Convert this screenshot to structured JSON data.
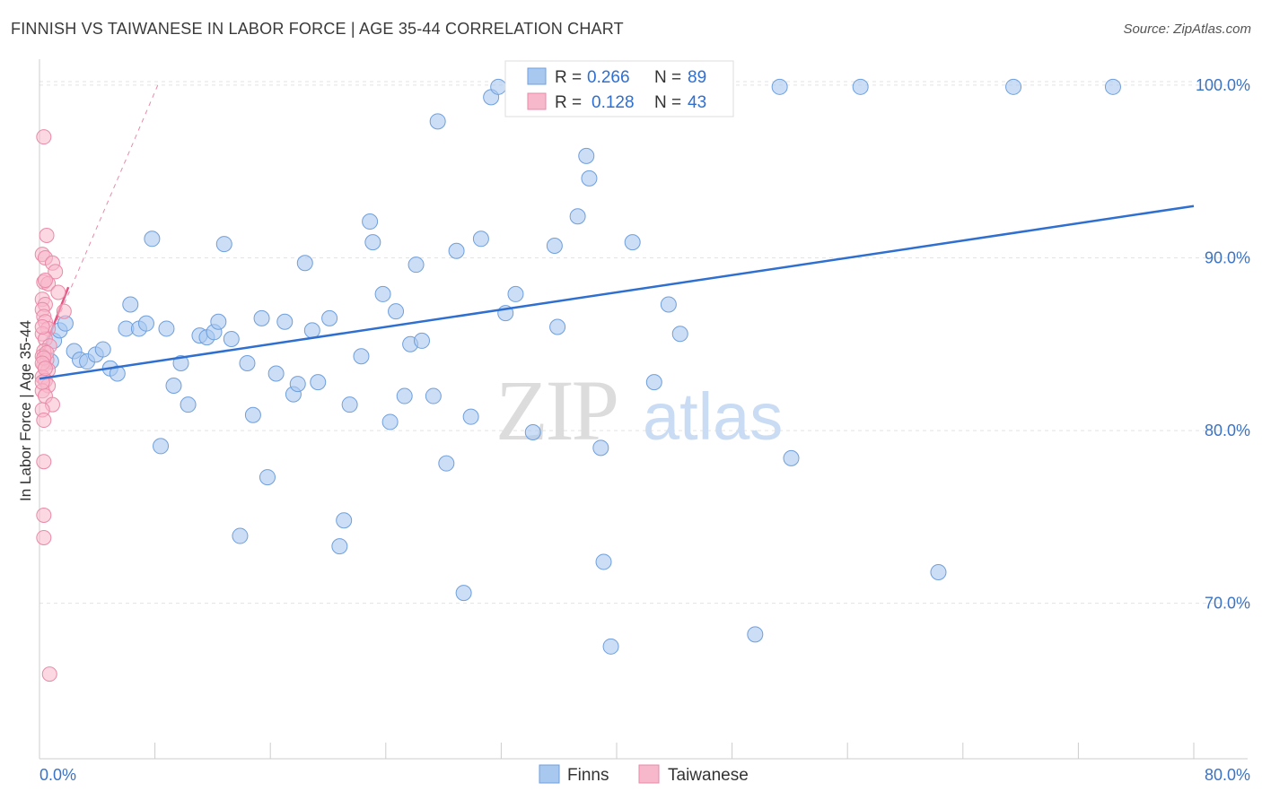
{
  "title": "FINNISH VS TAIWANESE IN LABOR FORCE | AGE 35-44 CORRELATION CHART",
  "source": "Source: ZipAtlas.com",
  "watermark": {
    "zip": "ZIP",
    "atlas": "atlas"
  },
  "colors": {
    "finns_fill": "#a9c8f0",
    "finns_stroke": "#6f9fdc",
    "finns_line": "#2f6fd0",
    "taiwanese_fill": "#f7b8cb",
    "taiwanese_stroke": "#e98aa8",
    "taiwanese_line": "#e35583",
    "grid": "#e3e3e3",
    "axis": "#cccccc",
    "tick_text": "#3b73c4"
  },
  "legend": {
    "rows": [
      {
        "r_label": "R =",
        "r_value": "0.266",
        "n_label": "N =",
        "n_value": "89"
      },
      {
        "r_label": "R =",
        "r_value": "0.128",
        "n_label": "N =",
        "n_value": "43"
      }
    ]
  },
  "bottom_legend": [
    "Finns",
    "Taiwanese"
  ],
  "chart_data": {
    "type": "scatter",
    "title": "FINNISH VS TAIWANESE IN LABOR FORCE | AGE 35-44 CORRELATION CHART",
    "xlabel": "",
    "ylabel": "In Labor Force | Age 35-44",
    "xlim": [
      0,
      80
    ],
    "ylim": [
      61,
      101.5
    ],
    "x_tick_labels": [
      {
        "value": 0,
        "label": "0.0%"
      },
      {
        "value": 80,
        "label": "80.0%"
      }
    ],
    "y_tick_labels": [
      {
        "value": 100,
        "label": "100.0%"
      },
      {
        "value": 90,
        "label": "90.0%"
      },
      {
        "value": 80,
        "label": "80.0%"
      },
      {
        "value": 70,
        "label": "70.0%"
      }
    ],
    "x_minor_ticks": [
      8,
      16,
      24,
      32,
      40,
      48,
      56,
      64,
      72,
      80
    ],
    "series": [
      {
        "name": "Finns",
        "r": 0.266,
        "n": 89,
        "trend": {
          "x": [
            0,
            80
          ],
          "y": [
            83.0,
            93.0
          ]
        },
        "points": [
          [
            0.8,
            84.0
          ],
          [
            1.0,
            85.2
          ],
          [
            1.4,
            85.8
          ],
          [
            1.8,
            86.2
          ],
          [
            2.4,
            84.6
          ],
          [
            2.8,
            84.1
          ],
          [
            3.3,
            84.0
          ],
          [
            3.9,
            84.4
          ],
          [
            4.4,
            84.7
          ],
          [
            4.9,
            83.6
          ],
          [
            5.4,
            83.3
          ],
          [
            6.3,
            87.3
          ],
          [
            6.0,
            85.9
          ],
          [
            6.9,
            85.9
          ],
          [
            7.4,
            86.2
          ],
          [
            7.8,
            91.1
          ],
          [
            8.4,
            79.1
          ],
          [
            8.8,
            85.9
          ],
          [
            9.3,
            82.6
          ],
          [
            9.8,
            83.9
          ],
          [
            10.3,
            81.5
          ],
          [
            11.1,
            85.5
          ],
          [
            11.6,
            85.4
          ],
          [
            12.1,
            85.7
          ],
          [
            12.4,
            86.3
          ],
          [
            12.8,
            90.8
          ],
          [
            13.3,
            85.3
          ],
          [
            13.9,
            73.9
          ],
          [
            14.4,
            83.9
          ],
          [
            14.8,
            80.9
          ],
          [
            15.4,
            86.5
          ],
          [
            15.8,
            77.3
          ],
          [
            16.4,
            83.3
          ],
          [
            17.0,
            86.3
          ],
          [
            17.6,
            82.1
          ],
          [
            17.9,
            82.7
          ],
          [
            18.4,
            89.7
          ],
          [
            18.9,
            85.8
          ],
          [
            19.3,
            82.8
          ],
          [
            20.1,
            86.5
          ],
          [
            20.8,
            73.3
          ],
          [
            21.1,
            74.8
          ],
          [
            21.5,
            81.5
          ],
          [
            22.3,
            84.3
          ],
          [
            22.9,
            92.1
          ],
          [
            23.1,
            90.9
          ],
          [
            23.8,
            87.9
          ],
          [
            24.3,
            80.5
          ],
          [
            24.7,
            86.9
          ],
          [
            25.3,
            82.0
          ],
          [
            25.7,
            85.0
          ],
          [
            26.1,
            89.6
          ],
          [
            26.5,
            85.2
          ],
          [
            27.3,
            82.0
          ],
          [
            27.6,
            97.9
          ],
          [
            28.2,
            78.1
          ],
          [
            28.9,
            90.4
          ],
          [
            29.4,
            70.6
          ],
          [
            29.9,
            80.8
          ],
          [
            30.6,
            91.1
          ],
          [
            31.3,
            99.3
          ],
          [
            31.8,
            99.9
          ],
          [
            32.3,
            86.8
          ],
          [
            33.0,
            87.9
          ],
          [
            34.2,
            79.9
          ],
          [
            35.0,
            99.9
          ],
          [
            35.7,
            90.7
          ],
          [
            35.9,
            86.0
          ],
          [
            37.3,
            92.4
          ],
          [
            37.9,
            95.9
          ],
          [
            38.1,
            94.6
          ],
          [
            38.9,
            79.0
          ],
          [
            39.1,
            72.4
          ],
          [
            39.6,
            67.5
          ],
          [
            40.9,
            99.9
          ],
          [
            41.1,
            90.9
          ],
          [
            42.6,
            82.8
          ],
          [
            43.6,
            87.3
          ],
          [
            44.4,
            85.6
          ],
          [
            45.4,
            99.9
          ],
          [
            46.1,
            99.9
          ],
          [
            49.6,
            68.2
          ],
          [
            51.3,
            99.9
          ],
          [
            52.1,
            78.4
          ],
          [
            56.9,
            99.9
          ],
          [
            62.3,
            71.8
          ],
          [
            67.5,
            99.9
          ],
          [
            74.4,
            99.9
          ],
          [
            44.8,
            99.8
          ]
        ]
      },
      {
        "name": "Taiwanese",
        "r": 0.128,
        "n": 43,
        "trend": {
          "x": [
            0,
            2.0
          ],
          "y": [
            84.0,
            88.3
          ]
        },
        "trend_extended": {
          "x": [
            0,
            8.2
          ],
          "y": [
            84.0,
            100.0
          ]
        },
        "points": [
          [
            0.3,
            97.0
          ],
          [
            0.5,
            91.3
          ],
          [
            0.2,
            90.2
          ],
          [
            0.4,
            90.0
          ],
          [
            0.9,
            89.7
          ],
          [
            1.1,
            89.2
          ],
          [
            0.3,
            88.6
          ],
          [
            0.6,
            88.5
          ],
          [
            1.3,
            88.0
          ],
          [
            0.2,
            87.6
          ],
          [
            0.4,
            87.3
          ],
          [
            0.2,
            87.0
          ],
          [
            1.7,
            86.9
          ],
          [
            0.3,
            86.6
          ],
          [
            0.4,
            86.3
          ],
          [
            0.6,
            85.9
          ],
          [
            0.2,
            85.6
          ],
          [
            0.4,
            85.3
          ],
          [
            0.7,
            84.9
          ],
          [
            0.3,
            84.6
          ],
          [
            0.2,
            84.3
          ],
          [
            0.5,
            84.1
          ],
          [
            0.3,
            83.8
          ],
          [
            0.6,
            83.5
          ],
          [
            0.2,
            83.1
          ],
          [
            0.4,
            82.9
          ],
          [
            0.6,
            82.6
          ],
          [
            0.2,
            82.3
          ],
          [
            0.4,
            82.0
          ],
          [
            0.9,
            81.5
          ],
          [
            0.2,
            81.2
          ],
          [
            0.3,
            80.6
          ],
          [
            0.3,
            78.2
          ],
          [
            0.3,
            75.1
          ],
          [
            0.3,
            73.8
          ],
          [
            0.7,
            65.9
          ],
          [
            0.4,
            88.7
          ],
          [
            0.2,
            86.0
          ],
          [
            0.5,
            84.5
          ],
          [
            0.3,
            84.2
          ],
          [
            0.2,
            83.9
          ],
          [
            0.4,
            83.6
          ],
          [
            0.2,
            82.8
          ]
        ]
      }
    ]
  }
}
